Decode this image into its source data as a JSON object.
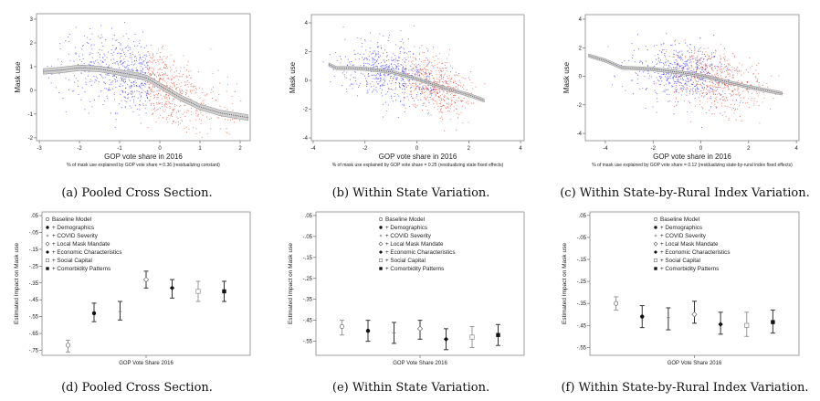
{
  "colors": {
    "democrat_points": "#2a2af0",
    "republican_points": "#d8462c",
    "fit_line": "#8a8a8a",
    "fit_band": "#c8c8c8",
    "dark_bar": "#333333",
    "light_bar": "#999999"
  },
  "legend_items": [
    {
      "label": "Baseline Model",
      "marker": "hollow-circle",
      "bar": "light"
    },
    {
      "label": "+ Demographics",
      "marker": "filled-circle",
      "bar": "dark"
    },
    {
      "label": "+ COVID Severity",
      "marker": "plus",
      "bar": "dark"
    },
    {
      "label": "+ Local Mask Mandate",
      "marker": "hollow-diamond",
      "bar": "dark"
    },
    {
      "label": "+ Economic Characteristics",
      "marker": "filled-diamond",
      "bar": "dark"
    },
    {
      "label": "+ Social Capital",
      "marker": "hollow-square",
      "bar": "light"
    },
    {
      "label": "+ Comorbidity Patterns",
      "marker": "filled-square",
      "bar": "dark"
    }
  ],
  "chart_data": [
    {
      "type": "scatter",
      "caption": "(a) Pooled Cross Section.",
      "xlabel": "GOP vote share in 2016",
      "ylabel": "Mask use",
      "note": "% of mask use explained by GOP vote share = 0.36 (residualizing constant)",
      "xlim": [
        -3.07,
        2.25
      ],
      "ylim": [
        -2.12,
        3.23
      ],
      "xticks": [
        -3,
        -2,
        -1,
        0,
        1,
        2
      ],
      "yticks": [
        -2,
        -1,
        0,
        1,
        2,
        3
      ],
      "fit_line": {
        "x": [
          -2.9,
          -2.5,
          -2.0,
          -1.5,
          -1.0,
          -0.5,
          -0.3,
          0,
          0.5,
          1.0,
          1.5,
          2.2
        ],
        "y": [
          0.8,
          0.85,
          0.95,
          0.9,
          0.75,
          0.6,
          0.5,
          0.2,
          -0.3,
          -0.7,
          -0.95,
          -1.15
        ]
      }
    },
    {
      "type": "scatter",
      "caption": "(b) Within State Variation.",
      "xlabel": "GOP vote share in 2016",
      "ylabel": "Mask use",
      "note": "% of mask use explained by GOP vote share = 0.25 (residualizing state fixed effects)",
      "xlim": [
        -4.07,
        4.14
      ],
      "ylim": [
        -4.19,
        4.57
      ],
      "xticks": [
        -4,
        -2,
        0,
        2,
        4
      ],
      "yticks": [
        -4,
        -2,
        0,
        2,
        4
      ],
      "fit_line": {
        "x": [
          -3.4,
          -3.1,
          -2.5,
          -2.0,
          -1.0,
          0,
          1.0,
          2.0,
          2.6
        ],
        "y": [
          1.1,
          0.85,
          0.85,
          0.8,
          0.6,
          0.1,
          -0.5,
          -1.0,
          -1.4
        ]
      }
    },
    {
      "type": "scatter",
      "caption": "(c) Within State-by-Rural Index Variation.",
      "xlabel": "GOP vote share in 2016",
      "ylabel": "Mask use",
      "note": "% of mask use explained by GOP vote share = 0.12 (residualizing state-by-rural index fixed effects)",
      "xlim": [
        -4.84,
        4.11
      ],
      "ylim": [
        -4.51,
        4.32
      ],
      "xticks": [
        -4,
        -2,
        0,
        2,
        4
      ],
      "yticks": [
        -4,
        -2,
        0,
        2,
        4
      ],
      "fit_line": {
        "x": [
          -4.7,
          -4.0,
          -3.3,
          -2.0,
          -1.0,
          0,
          1.0,
          2.0,
          3.4
        ],
        "y": [
          1.45,
          1.1,
          0.6,
          0.5,
          0.3,
          0.05,
          -0.35,
          -0.75,
          -1.2
        ]
      }
    },
    {
      "type": "errorbar",
      "caption": "(d) Pooled Cross Section.",
      "xlabel": "GOP Vote Share 2016",
      "ylabel": "Estimated Impact on Mask use",
      "ylim": [
        -0.78,
        0.072
      ],
      "yticks": [
        0.05,
        -0.05,
        -0.15,
        -0.25,
        -0.35,
        -0.45,
        -0.55,
        -0.65,
        -0.75
      ],
      "ytick_labels": [
        ".05",
        "-.05",
        "-.15",
        "-.25",
        "-.35",
        "-.45",
        "-.55",
        "-.65",
        "-.75"
      ],
      "legend_position": "top-left",
      "estimates": [
        -0.72,
        -0.53,
        -0.52,
        -0.33,
        -0.38,
        -0.4,
        -0.4
      ],
      "ci_low": [
        -0.76,
        -0.58,
        -0.57,
        -0.38,
        -0.44,
        -0.46,
        -0.46
      ],
      "ci_high": [
        -0.69,
        -0.47,
        -0.46,
        -0.28,
        -0.33,
        -0.34,
        -0.34
      ]
    },
    {
      "type": "errorbar",
      "caption": "(e) Within State Variation.",
      "xlabel": "GOP Vote Share 2016",
      "ylabel": "Estimated Impact on Mask use",
      "ylim": [
        -0.617,
        0.067
      ],
      "yticks": [
        0.05,
        -0.05,
        -0.15,
        -0.25,
        -0.35,
        -0.45,
        -0.55
      ],
      "ytick_labels": [
        ".05",
        "-.05",
        "-.15",
        "-.25",
        "-.35",
        "-.45",
        "-.55"
      ],
      "legend_position": "top-center",
      "estimates": [
        -0.48,
        -0.5,
        -0.51,
        -0.49,
        -0.54,
        -0.53,
        -0.52
      ],
      "ci_low": [
        -0.52,
        -0.55,
        -0.56,
        -0.54,
        -0.59,
        -0.58,
        -0.57
      ],
      "ci_high": [
        -0.45,
        -0.45,
        -0.46,
        -0.45,
        -0.49,
        -0.48,
        -0.47
      ]
    },
    {
      "type": "errorbar",
      "caption": "(f) Within State-by-Rural Index Variation.",
      "xlabel": "GOP Vote Share 2016",
      "ylabel": "Estimated Impact on Mask use",
      "ylim": [
        -0.586,
        0.066
      ],
      "yticks": [
        0.05,
        -0.05,
        -0.15,
        -0.25,
        -0.35,
        -0.45,
        -0.55
      ],
      "ytick_labels": [
        ".05",
        "-.05",
        "-.15",
        "-.25",
        "-.35",
        "-.45",
        "-.55"
      ],
      "legend_position": "top-center",
      "estimates": [
        -0.35,
        -0.41,
        -0.415,
        -0.4,
        -0.445,
        -0.45,
        -0.435
      ],
      "ci_low": [
        -0.38,
        -0.46,
        -0.47,
        -0.44,
        -0.49,
        -0.5,
        -0.485
      ],
      "ci_high": [
        -0.32,
        -0.36,
        -0.37,
        -0.34,
        -0.39,
        -0.39,
        -0.38
      ]
    }
  ]
}
